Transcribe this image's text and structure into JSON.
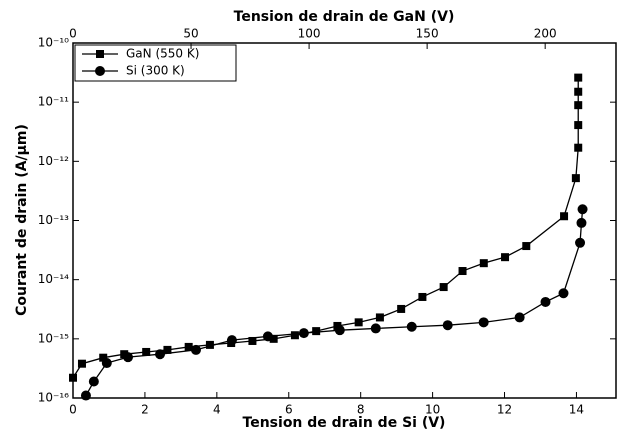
{
  "chart_data": {
    "type": "line",
    "title_top": "Tension de drain de GaN (V)",
    "xlabel": "Tension de drain de Si (V)",
    "ylabel": "Courant de drain (A/µm)",
    "xlim": [
      0,
      15.1
    ],
    "xticks": [
      0,
      2,
      4,
      6,
      8,
      10,
      12,
      14
    ],
    "x2lim": [
      0,
      230
    ],
    "x2ticks": [
      0,
      50,
      100,
      150,
      200
    ],
    "ylim": [
      1e-16,
      1e-10
    ],
    "ylog": true,
    "yticks": [
      {
        "value": 1e-16,
        "label": "10⁻¹⁶"
      },
      {
        "value": 1e-15,
        "label": "10⁻¹⁵"
      },
      {
        "value": 1e-14,
        "label": "10⁻¹⁴"
      },
      {
        "value": 1e-13,
        "label": "10⁻¹³"
      },
      {
        "value": 1e-12,
        "label": "10⁻¹²"
      },
      {
        "value": 1e-11,
        "label": "10⁻¹¹"
      },
      {
        "value": 1e-10,
        "label": "10⁻¹⁰"
      }
    ],
    "legend": "top-left",
    "series": [
      {
        "name": "GaN (550 K)",
        "color": "#000000",
        "marker": "square",
        "axis": "x2",
        "x": [
          0,
          3.8,
          12.8,
          21.7,
          31,
          40,
          49,
          58,
          67,
          76,
          85,
          94,
          103,
          112,
          121,
          130,
          139,
          148,
          157,
          165,
          174,
          183,
          192,
          208,
          213,
          214,
          214,
          214,
          214,
          214
        ],
        "values": [
          2.2e-16,
          3.8e-16,
          4.8e-16,
          5.5e-16,
          6e-16,
          6.5e-16,
          7.3e-16,
          7.9e-16,
          8.5e-16,
          9.2e-16,
          1e-15,
          1.15e-15,
          1.35e-15,
          1.65e-15,
          1.9e-15,
          2.3e-15,
          3.2e-15,
          5.1e-15,
          7.5e-15,
          1.4e-14,
          1.9e-14,
          2.4e-14,
          3.7e-14,
          1.18e-13,
          5.2e-13,
          1.7e-12,
          4.1e-12,
          8.9e-12,
          1.5e-11,
          2.6e-11
        ]
      },
      {
        "name": "Si (300 K)",
        "color": "#000000",
        "marker": "circle",
        "x": [
          0.36,
          0.58,
          0.94,
          1.53,
          2.42,
          3.42,
          4.42,
          5.42,
          6.42,
          7.42,
          8.42,
          9.42,
          10.42,
          11.42,
          12.42,
          13.14,
          13.64,
          14.1,
          14.14,
          14.17
        ],
        "values": [
          1.1e-16,
          1.9e-16,
          3.9e-16,
          4.9e-16,
          5.5e-16,
          6.5e-16,
          9.5e-16,
          1.1e-15,
          1.25e-15,
          1.4e-15,
          1.5e-15,
          1.6e-15,
          1.7e-15,
          1.9e-15,
          2.3e-15,
          4.2e-15,
          5.9e-15,
          4.2e-14,
          9.1e-14,
          1.55e-13
        ]
      }
    ]
  }
}
